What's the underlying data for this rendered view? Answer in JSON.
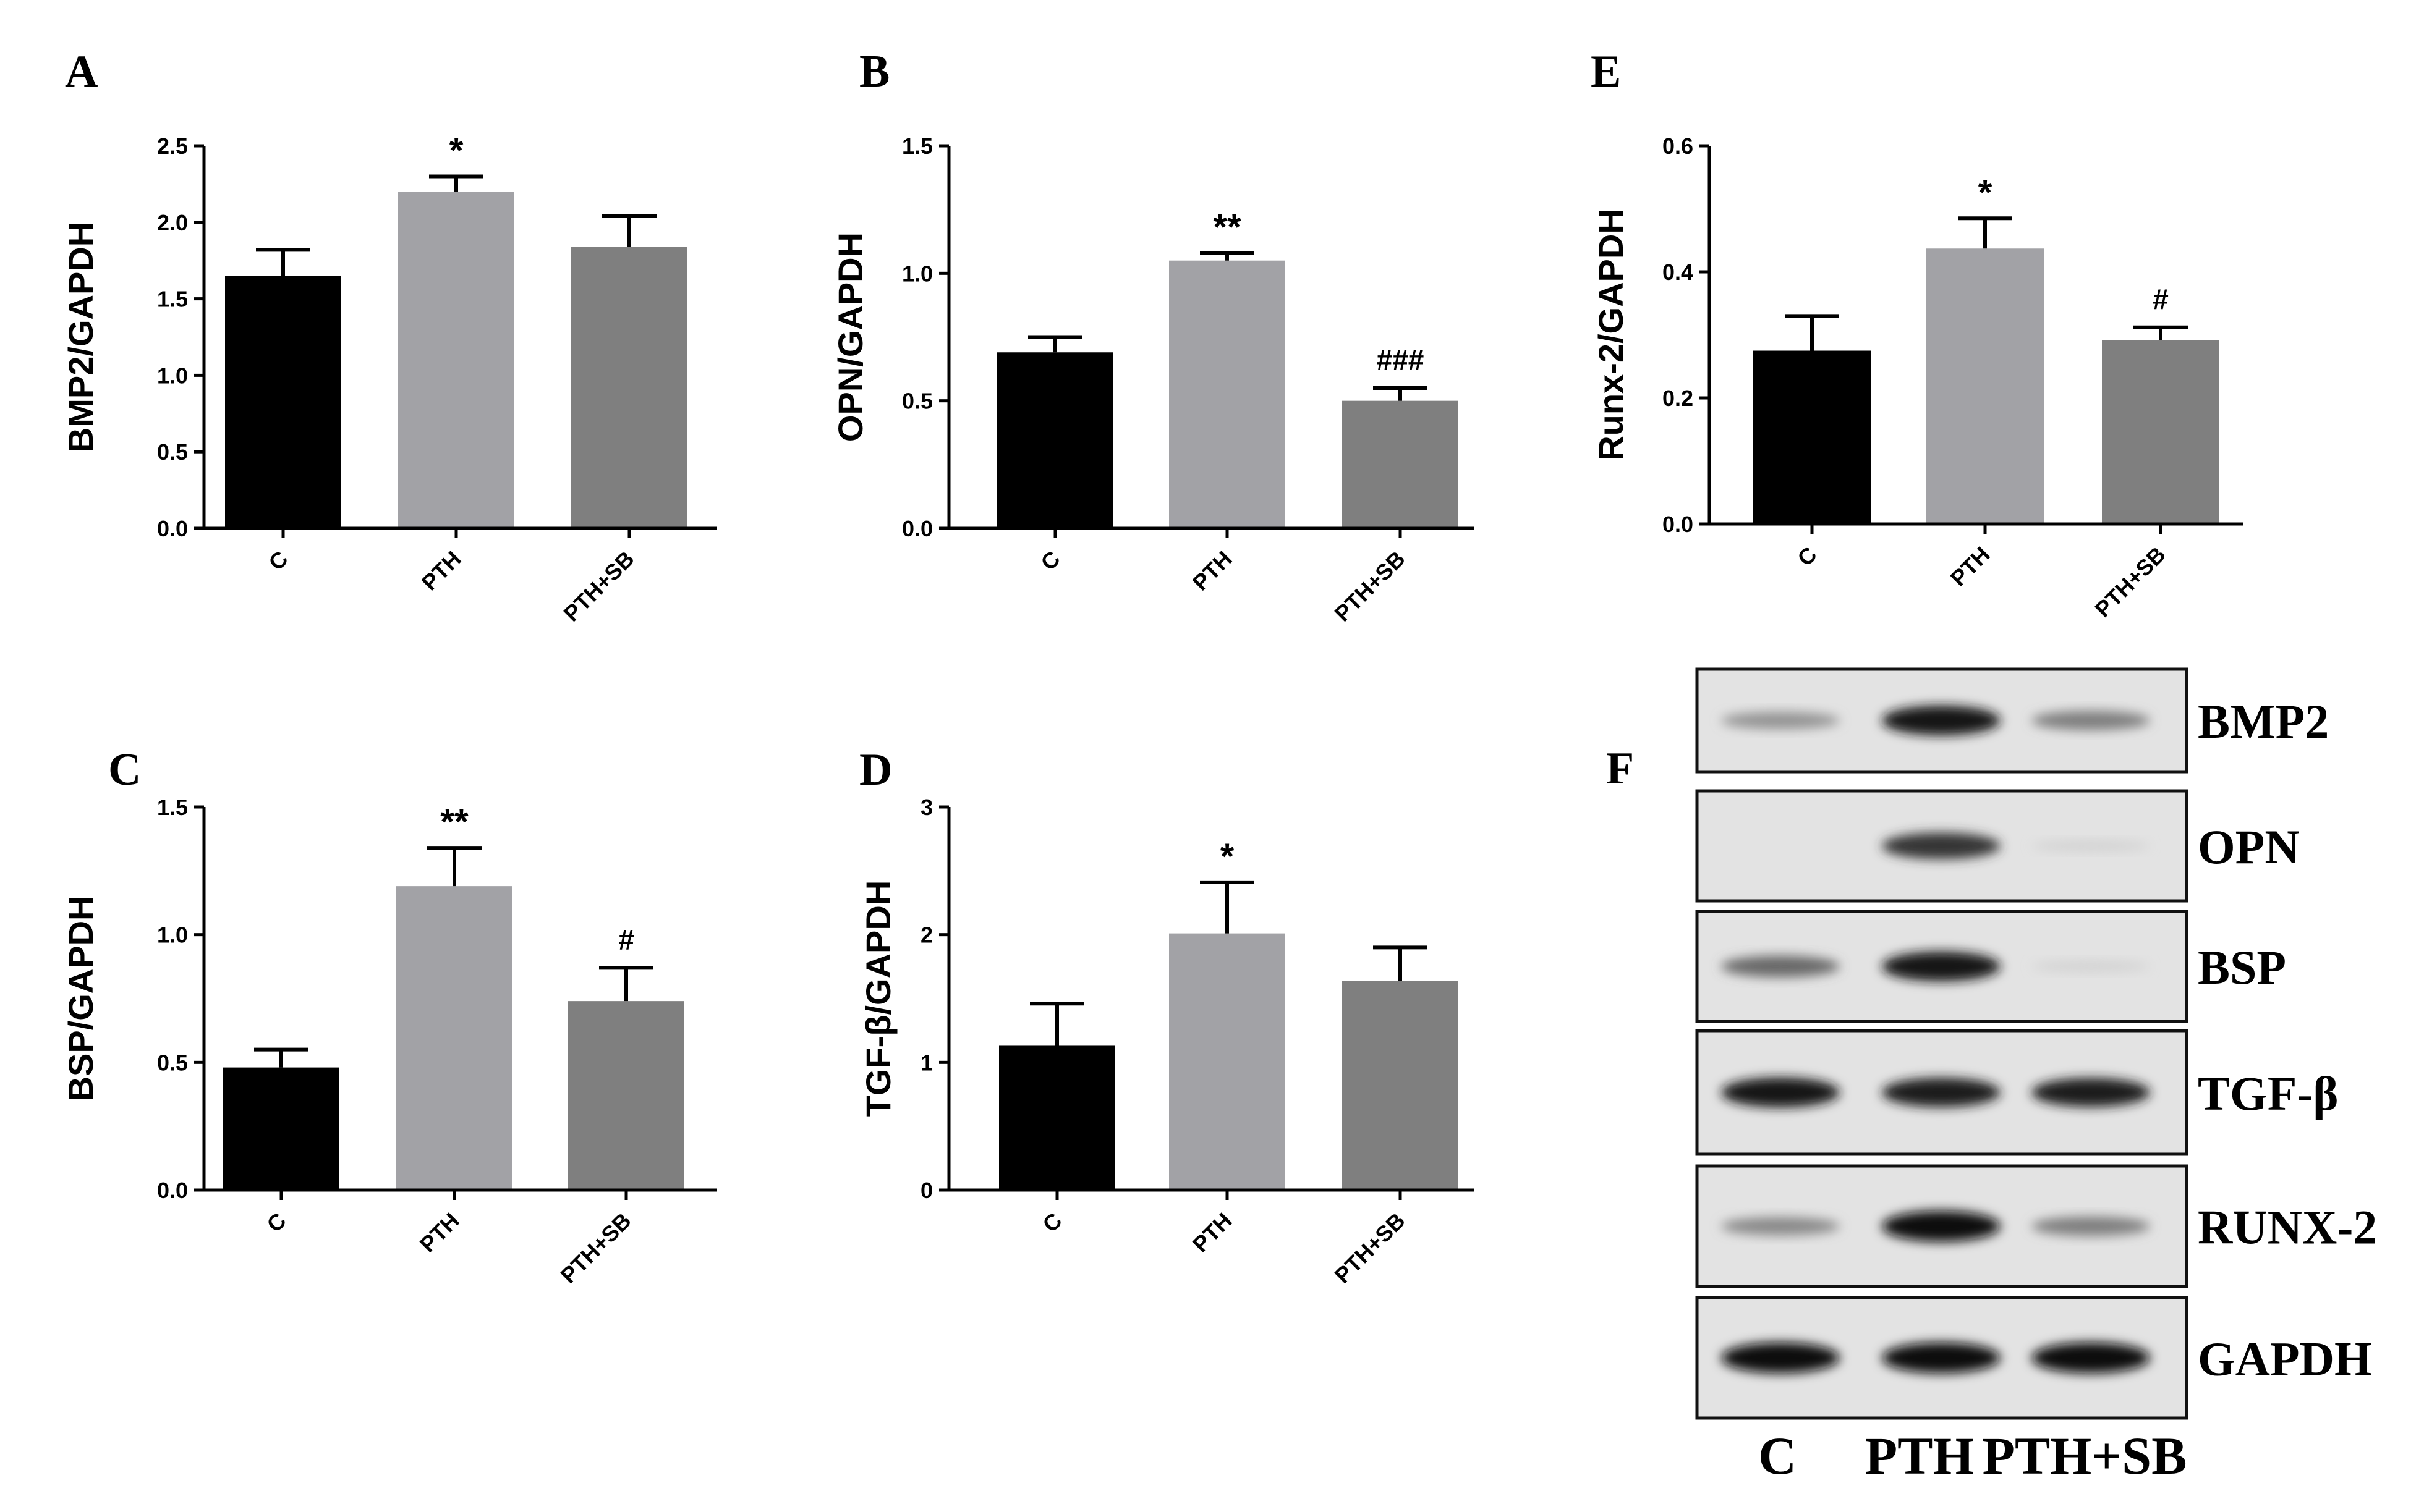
{
  "chart_data": [
    {
      "panel": "A",
      "type": "bar",
      "categories": [
        "C",
        "PTH",
        "PTH+SB"
      ],
      "values": [
        1.65,
        2.2,
        1.84
      ],
      "errors": [
        0.17,
        0.1,
        0.2
      ],
      "significance": [
        "",
        "*",
        ""
      ],
      "ylabel": "BMP2/GAPDH",
      "xlabel": "",
      "ylim": [
        0,
        2.5
      ],
      "yticks": [
        "0.0",
        "0.5",
        "1.0",
        "1.5",
        "2.0",
        "2.5"
      ],
      "colors": [
        "#000000",
        "#a2a2a6",
        "#7f7f7f"
      ]
    },
    {
      "panel": "B",
      "type": "bar",
      "categories": [
        "C",
        "PTH",
        "PTH+SB"
      ],
      "values": [
        0.69,
        1.05,
        0.5
      ],
      "errors": [
        0.06,
        0.03,
        0.05
      ],
      "significance": [
        "",
        "**",
        "###"
      ],
      "ylabel": "OPN/GAPDH",
      "xlabel": "",
      "ylim": [
        0,
        1.5
      ],
      "yticks": [
        "0.0",
        "0.5",
        "1.0",
        "1.5"
      ],
      "colors": [
        "#000000",
        "#a2a2a6",
        "#7f7f7f"
      ]
    },
    {
      "panel": "E",
      "type": "bar",
      "categories": [
        "C",
        "PTH",
        "PTH+SB"
      ],
      "values": [
        0.275,
        0.437,
        0.292
      ],
      "errors": [
        0.055,
        0.048,
        0.02
      ],
      "significance": [
        "",
        "*",
        "#"
      ],
      "ylabel": "Runx-2/GAPDH",
      "xlabel": "",
      "ylim": [
        0,
        0.6
      ],
      "yticks": [
        "0.0",
        "0.2",
        "0.4",
        "0.6"
      ],
      "colors": [
        "#000000",
        "#a2a2a6",
        "#7f7f7f"
      ]
    },
    {
      "panel": "C",
      "type": "bar",
      "categories": [
        "C",
        "PTH",
        "PTH+SB"
      ],
      "values": [
        0.48,
        1.19,
        0.74
      ],
      "errors": [
        0.07,
        0.15,
        0.13
      ],
      "significance": [
        "",
        "**",
        "#"
      ],
      "ylabel": "BSP/GAPDH",
      "xlabel": "",
      "ylim": [
        0,
        1.5
      ],
      "yticks": [
        "0.0",
        "0.5",
        "1.0",
        "1.5"
      ],
      "colors": [
        "#000000",
        "#a2a2a6",
        "#7f7f7f"
      ]
    },
    {
      "panel": "D",
      "type": "bar",
      "categories": [
        "C",
        "PTH",
        "PTH+SB"
      ],
      "values": [
        1.13,
        2.01,
        1.64
      ],
      "errors": [
        0.33,
        0.4,
        0.26
      ],
      "significance": [
        "",
        "*",
        ""
      ],
      "ylabel": "TGF-β/GAPDH",
      "xlabel": "",
      "ylim": [
        0,
        3
      ],
      "yticks": [
        "0",
        "1",
        "2",
        "3"
      ],
      "colors": [
        "#000000",
        "#a2a2a6",
        "#7f7f7f"
      ]
    }
  ],
  "blot": {
    "panel": "F",
    "proteins": [
      "BMP2",
      "OPN",
      "BSP",
      "TGF-β",
      "RUNX-2",
      "GAPDH"
    ],
    "lanes": [
      "C",
      "PTH",
      "PTH+SB"
    ],
    "band_intensity": [
      [
        0.35,
        0.95,
        0.45
      ],
      [
        0.0,
        0.8,
        0.05
      ],
      [
        0.55,
        0.95,
        0.05
      ],
      [
        0.95,
        0.92,
        0.9
      ],
      [
        0.4,
        1.0,
        0.45
      ],
      [
        1.0,
        1.0,
        1.0
      ]
    ]
  }
}
